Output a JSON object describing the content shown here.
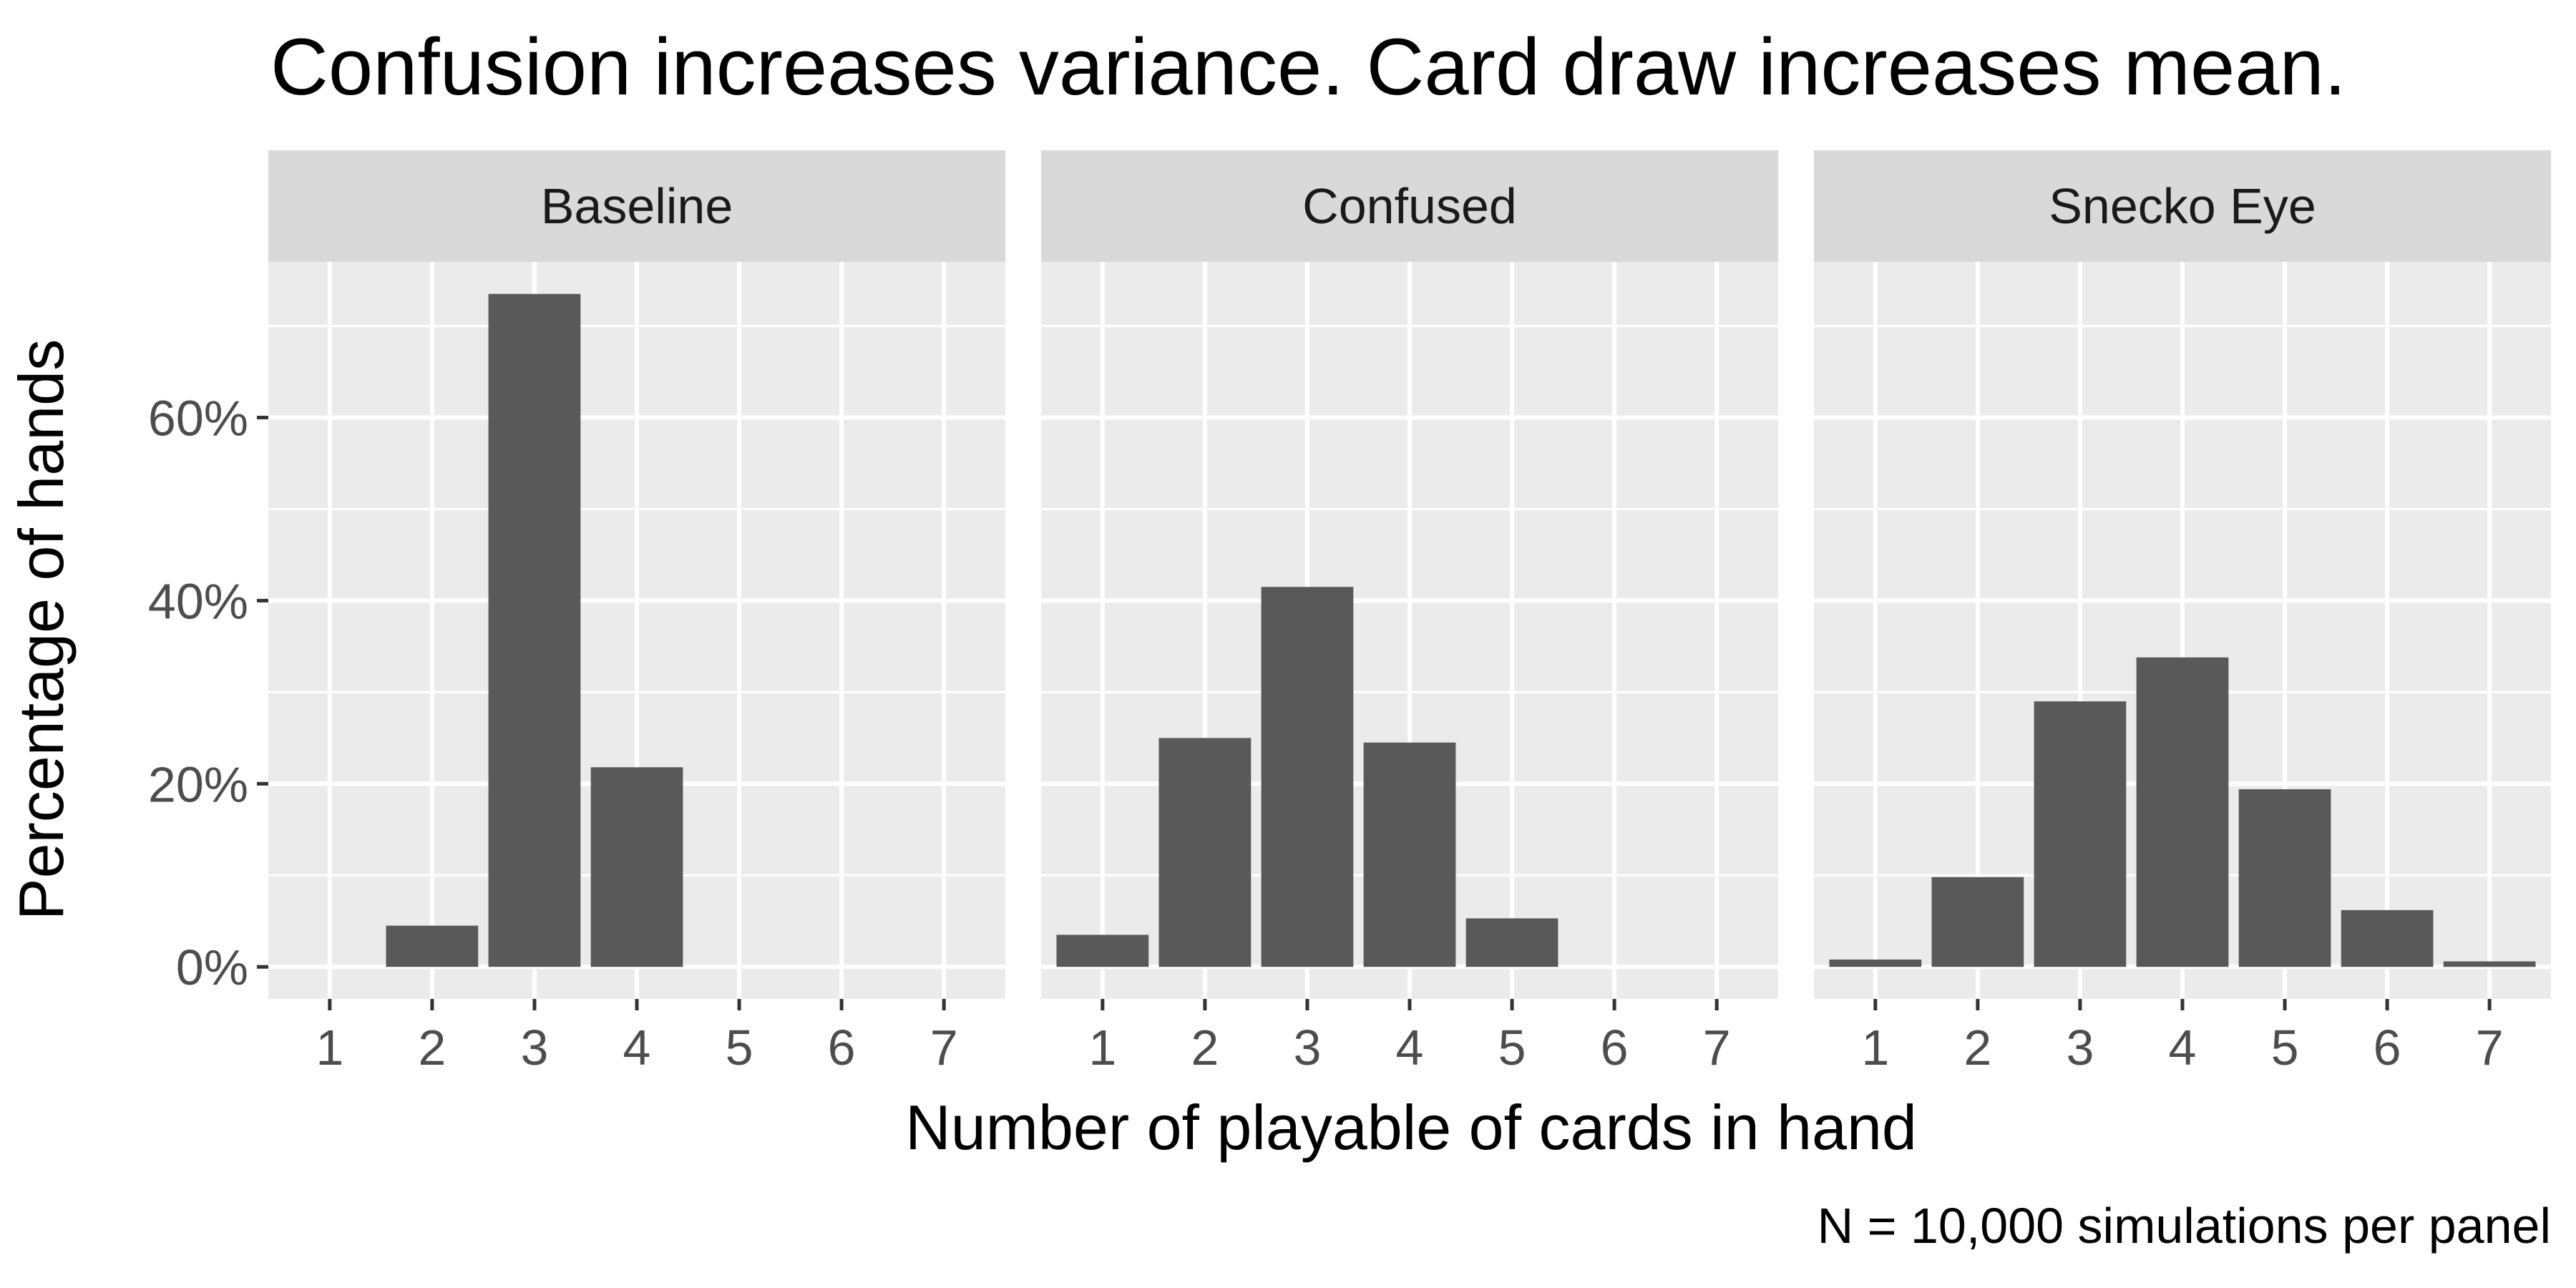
{
  "chart_data": {
    "type": "bar",
    "title": "Confusion increases variance. Card draw increases mean.",
    "xlabel": "Number of playable of cards in hand",
    "ylabel": "Percentage of hands",
    "caption": "N = 10,000 simulations per panel",
    "categories": [
      "1",
      "2",
      "3",
      "4",
      "5",
      "6",
      "7"
    ],
    "y_ticks": [
      "0%",
      "20%",
      "40%",
      "60%"
    ],
    "y_tick_values": [
      0,
      20,
      40,
      60
    ],
    "ylim": [
      -3.5,
      77
    ],
    "grid": true,
    "bar_color": "#595959",
    "panel_bg": "#ebebeb",
    "strip_bg": "#d9d9d9",
    "panels": [
      {
        "name": "Baseline",
        "values": [
          0,
          4.5,
          73.5,
          21.8,
          0,
          0,
          0
        ]
      },
      {
        "name": "Confused",
        "values": [
          3.5,
          25.0,
          41.5,
          24.5,
          5.3,
          0,
          0
        ]
      },
      {
        "name": "Snecko Eye",
        "values": [
          0.8,
          9.8,
          29.0,
          33.8,
          19.4,
          6.2,
          0.6
        ]
      }
    ]
  }
}
